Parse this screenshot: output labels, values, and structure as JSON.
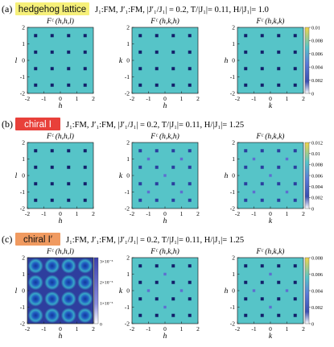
{
  "figure": {
    "rows": [
      {
        "letter": "(a)",
        "badge": "hedgehog lattice",
        "badge_color": "#f6f07a",
        "params": "J₁:FM,  J′₁:FM,  |J′₁/J₁| = 0.2,  T/|J₁|= 0.11,  H/|J₁|= 1.0",
        "colorbar_ticks": [
          "0",
          "0.002",
          "0.004",
          "0.006",
          "0.008",
          "0.01"
        ],
        "colorbar_max": 0.01
      },
      {
        "letter": "(b)",
        "badge": "chiral I",
        "badge_color": "#e8403a",
        "params": "J₁:FM,  J′₁:FM,  |J′₁/J₁| = 0.2,  T/|J₁|= 0.11,  H/|J₁|= 1.25",
        "colorbar_ticks": [
          "0",
          "0.002",
          "0.004",
          "0.006",
          "0.008",
          "0.01",
          "0.012"
        ],
        "colorbar_max": 0.012
      },
      {
        "letter": "(c)",
        "badge": "chiral I′",
        "badge_color": "#f09a60",
        "params": "J₁:FM,  J′₁:FM,  |J′₁/J₁| = 0.2,  T/|J₁|= 0.11,  H/|J₁|= 1.25",
        "colorbar_ticks": [
          "0",
          "0.002",
          "0.004",
          "0.006",
          "0.008"
        ],
        "colorbar_max": 0.008,
        "inset_colorbar_ticks": [
          "0",
          "1×10⁻⁵",
          "2×10⁻⁵",
          "3×10⁻⁵"
        ]
      }
    ],
    "colors": {
      "background": "#56c4c8",
      "peak_low": "#5e6ed0",
      "peak_mid": "#2a3f9e",
      "peak_high": "#13206a",
      "colorbar_top": "#f3d448",
      "diffuse_bg": "#2e3e9e"
    }
  },
  "chart_data": [
    {
      "type": "heatmap",
      "panel": "a-1",
      "title": "Fᶜ (h,h,l)",
      "xlabel": "h",
      "ylabel": "l",
      "xlim": [
        -2,
        2
      ],
      "ylim": [
        -2,
        2
      ],
      "xticks": [
        "-2",
        "-1",
        "0",
        "1",
        "2"
      ],
      "yticks": [
        "-2",
        "-1",
        "0",
        "1",
        "2"
      ],
      "peaks": [
        {
          "x": -1.5,
          "y": 1.5,
          "v": 0.005
        },
        {
          "x": -0.5,
          "y": 1.5,
          "v": 0.005
        },
        {
          "x": 0.5,
          "y": 1.5,
          "v": 0.005
        },
        {
          "x": 1.5,
          "y": 1.5,
          "v": 0.005
        },
        {
          "x": -1.5,
          "y": 0.5,
          "v": 0.005
        },
        {
          "x": -0.5,
          "y": 0.5,
          "v": 0.005
        },
        {
          "x": 0.5,
          "y": 0.5,
          "v": 0.005
        },
        {
          "x": 1.5,
          "y": 0.5,
          "v": 0.005
        },
        {
          "x": -1.5,
          "y": -0.5,
          "v": 0.005
        },
        {
          "x": -0.5,
          "y": -0.5,
          "v": 0.005
        },
        {
          "x": 0.5,
          "y": -0.5,
          "v": 0.005
        },
        {
          "x": 1.5,
          "y": -0.5,
          "v": 0.005
        },
        {
          "x": -1.5,
          "y": -1.5,
          "v": 0.005
        },
        {
          "x": -0.5,
          "y": -1.5,
          "v": 0.005
        },
        {
          "x": 0.5,
          "y": -1.5,
          "v": 0.005
        },
        {
          "x": 1.5,
          "y": -1.5,
          "v": 0.005
        }
      ]
    },
    {
      "type": "heatmap",
      "panel": "a-2",
      "title": "Fᶜ (h,k,h)",
      "xlabel": "h",
      "ylabel": "k",
      "xlim": [
        -2,
        2
      ],
      "ylim": [
        -2,
        2
      ],
      "xticks": [
        "-2",
        "-1",
        "0",
        "1",
        "2"
      ],
      "yticks": [
        "-2",
        "-1",
        "0",
        "1",
        "2"
      ],
      "peaks": [
        {
          "x": -1.5,
          "y": 1.5,
          "v": 0.005
        },
        {
          "x": -0.5,
          "y": 1.5,
          "v": 0.005
        },
        {
          "x": 0.5,
          "y": 1.5,
          "v": 0.005
        },
        {
          "x": 1.5,
          "y": 1.5,
          "v": 0.005
        },
        {
          "x": -1.5,
          "y": 0.5,
          "v": 0.005
        },
        {
          "x": -0.5,
          "y": 0.5,
          "v": 0.005
        },
        {
          "x": 0.5,
          "y": 0.5,
          "v": 0.005
        },
        {
          "x": 1.5,
          "y": 0.5,
          "v": 0.005
        },
        {
          "x": -1.5,
          "y": -0.5,
          "v": 0.005
        },
        {
          "x": -0.5,
          "y": -0.5,
          "v": 0.005
        },
        {
          "x": 0.5,
          "y": -0.5,
          "v": 0.005
        },
        {
          "x": 1.5,
          "y": -0.5,
          "v": 0.005
        },
        {
          "x": -1.5,
          "y": -1.5,
          "v": 0.005
        },
        {
          "x": -0.5,
          "y": -1.5,
          "v": 0.005
        },
        {
          "x": 0.5,
          "y": -1.5,
          "v": 0.005
        },
        {
          "x": 1.5,
          "y": -1.5,
          "v": 0.005
        }
      ]
    },
    {
      "type": "heatmap",
      "panel": "a-3",
      "title": "Fᶜ (h,k,k)",
      "xlabel": "k",
      "ylabel": "h",
      "xlim": [
        -2,
        2
      ],
      "ylim": [
        -2,
        2
      ],
      "xticks": [
        "-2",
        "-1",
        "0",
        "1",
        "2"
      ],
      "yticks": [
        "-2",
        "-1",
        "0",
        "1",
        "2"
      ],
      "peaks": [
        {
          "x": -1.5,
          "y": 1.5,
          "v": 0.005
        },
        {
          "x": -0.5,
          "y": 1.5,
          "v": 0.005
        },
        {
          "x": 0.5,
          "y": 1.5,
          "v": 0.005
        },
        {
          "x": 1.5,
          "y": 1.5,
          "v": 0.005
        },
        {
          "x": -1.5,
          "y": 0.5,
          "v": 0.005
        },
        {
          "x": -0.5,
          "y": 0.5,
          "v": 0.005
        },
        {
          "x": 0.5,
          "y": 0.5,
          "v": 0.005
        },
        {
          "x": 1.5,
          "y": 0.5,
          "v": 0.005
        },
        {
          "x": -1.5,
          "y": -0.5,
          "v": 0.005
        },
        {
          "x": -0.5,
          "y": -0.5,
          "v": 0.005
        },
        {
          "x": 0.5,
          "y": -0.5,
          "v": 0.005
        },
        {
          "x": 1.5,
          "y": -0.5,
          "v": 0.005
        },
        {
          "x": -1.5,
          "y": -1.5,
          "v": 0.005
        },
        {
          "x": -0.5,
          "y": -1.5,
          "v": 0.005
        },
        {
          "x": 0.5,
          "y": -1.5,
          "v": 0.005
        },
        {
          "x": 1.5,
          "y": -1.5,
          "v": 0.005
        }
      ]
    },
    {
      "type": "heatmap",
      "panel": "b-1",
      "title": "Fᶜ (h,h,l)",
      "xlabel": "h",
      "ylabel": "l",
      "xlim": [
        -2,
        2
      ],
      "ylim": [
        -2,
        2
      ],
      "xticks": [
        "-2",
        "-1",
        "0",
        "1",
        "2"
      ],
      "yticks": [
        "-2",
        "-1",
        "0",
        "1",
        "2"
      ],
      "peaks": [
        {
          "x": -1.5,
          "y": 1.5,
          "v": 0.006
        },
        {
          "x": -0.5,
          "y": 1.5,
          "v": 0.006
        },
        {
          "x": 0.5,
          "y": 1.5,
          "v": 0.006
        },
        {
          "x": 1.5,
          "y": 1.5,
          "v": 0.006
        },
        {
          "x": -1.5,
          "y": 0.5,
          "v": 0.006
        },
        {
          "x": -0.5,
          "y": 0.5,
          "v": 0.006
        },
        {
          "x": 0.5,
          "y": 0.5,
          "v": 0.006
        },
        {
          "x": 1.5,
          "y": 0.5,
          "v": 0.006
        },
        {
          "x": -1.5,
          "y": -0.5,
          "v": 0.006
        },
        {
          "x": -0.5,
          "y": -0.5,
          "v": 0.006
        },
        {
          "x": 0.5,
          "y": -0.5,
          "v": 0.006
        },
        {
          "x": 1.5,
          "y": -0.5,
          "v": 0.006
        },
        {
          "x": -1.5,
          "y": -1.5,
          "v": 0.006
        },
        {
          "x": -0.5,
          "y": -1.5,
          "v": 0.006
        },
        {
          "x": 0.5,
          "y": -1.5,
          "v": 0.006
        },
        {
          "x": 1.5,
          "y": -1.5,
          "v": 0.006
        }
      ]
    },
    {
      "type": "heatmap",
      "panel": "b-2",
      "title": "Fᶜ (h,k,h)",
      "xlabel": "h",
      "ylabel": "k",
      "xlim": [
        -2,
        2
      ],
      "ylim": [
        -2,
        2
      ],
      "xticks": [
        "-2",
        "-1",
        "0",
        "1",
        "2"
      ],
      "yticks": [
        "-2",
        "-1",
        "0",
        "1",
        "2"
      ],
      "peaks": [
        {
          "x": -1.5,
          "y": 1.5,
          "v": 0.004
        },
        {
          "x": -0.5,
          "y": 1.5,
          "v": 0.004
        },
        {
          "x": 0.5,
          "y": 1.5,
          "v": 0.004
        },
        {
          "x": 1.5,
          "y": 1.5,
          "v": 0.004
        },
        {
          "x": -1,
          "y": 1,
          "v": 0.003
        },
        {
          "x": 1,
          "y": 1,
          "v": 0.003
        },
        {
          "x": -1.5,
          "y": 0.5,
          "v": 0.004
        },
        {
          "x": -0.5,
          "y": 0.5,
          "v": 0.004
        },
        {
          "x": 0.5,
          "y": 0.5,
          "v": 0.004
        },
        {
          "x": 1.5,
          "y": 0.5,
          "v": 0.004
        },
        {
          "x": 0,
          "y": 0,
          "v": 0.003
        },
        {
          "x": -1.5,
          "y": -0.5,
          "v": 0.004
        },
        {
          "x": -0.5,
          "y": -0.5,
          "v": 0.004
        },
        {
          "x": 0.5,
          "y": -0.5,
          "v": 0.004
        },
        {
          "x": 1.5,
          "y": -0.5,
          "v": 0.004
        },
        {
          "x": -1,
          "y": -1,
          "v": 0.003
        },
        {
          "x": 1,
          "y": -1,
          "v": 0.003
        },
        {
          "x": -1.5,
          "y": -1.5,
          "v": 0.004
        },
        {
          "x": -0.5,
          "y": -1.5,
          "v": 0.004
        },
        {
          "x": 0.5,
          "y": -1.5,
          "v": 0.004
        },
        {
          "x": 1.5,
          "y": -1.5,
          "v": 0.004
        }
      ]
    },
    {
      "type": "heatmap",
      "panel": "b-3",
      "title": "Fᶜ (h,k,k)",
      "xlabel": "k",
      "ylabel": "h",
      "xlim": [
        -2,
        2
      ],
      "ylim": [
        -2,
        2
      ],
      "xticks": [
        "-2",
        "-1",
        "0",
        "1",
        "2"
      ],
      "yticks": [
        "-2",
        "-1",
        "0",
        "1",
        "2"
      ],
      "peaks": [
        {
          "x": -1.5,
          "y": 1.5,
          "v": 0.004
        },
        {
          "x": -0.5,
          "y": 1.5,
          "v": 0.004
        },
        {
          "x": 0.5,
          "y": 1.5,
          "v": 0.004
        },
        {
          "x": 1.5,
          "y": 1.5,
          "v": 0.004
        },
        {
          "x": -1,
          "y": 1,
          "v": 0.003
        },
        {
          "x": 1,
          "y": 1,
          "v": 0.003
        },
        {
          "x": -1.5,
          "y": 0.5,
          "v": 0.004
        },
        {
          "x": -0.5,
          "y": 0.5,
          "v": 0.004
        },
        {
          "x": 0.5,
          "y": 0.5,
          "v": 0.004
        },
        {
          "x": 1.5,
          "y": 0.5,
          "v": 0.004
        },
        {
          "x": 0,
          "y": 0,
          "v": 0.003
        },
        {
          "x": -1.5,
          "y": -0.5,
          "v": 0.004
        },
        {
          "x": -0.5,
          "y": -0.5,
          "v": 0.004
        },
        {
          "x": 0.5,
          "y": -0.5,
          "v": 0.004
        },
        {
          "x": 1.5,
          "y": -0.5,
          "v": 0.004
        },
        {
          "x": -1,
          "y": -1,
          "v": 0.003
        },
        {
          "x": 1,
          "y": -1,
          "v": 0.003
        },
        {
          "x": -1.5,
          "y": -1.5,
          "v": 0.004
        },
        {
          "x": -0.5,
          "y": -1.5,
          "v": 0.004
        },
        {
          "x": 0.5,
          "y": -1.5,
          "v": 0.004
        },
        {
          "x": 1.5,
          "y": -1.5,
          "v": 0.004
        }
      ]
    },
    {
      "type": "heatmap",
      "panel": "c-1",
      "title": "Fᶜ (h,h,l)",
      "xlabel": "h",
      "ylabel": "l",
      "xlim": [
        -2,
        2
      ],
      "ylim": [
        -2,
        2
      ],
      "xticks": [
        "-2",
        "-1",
        "0",
        "1",
        "2"
      ],
      "yticks": [
        "-2",
        "-1",
        "0",
        "1",
        "2"
      ],
      "diffuse": true,
      "colorbar_max": 3e-05,
      "peaks": [
        {
          "x": -1.5,
          "y": 1.5,
          "v": 2.5e-05
        },
        {
          "x": -0.5,
          "y": 1.5,
          "v": 2.5e-05
        },
        {
          "x": 0.5,
          "y": 1.5,
          "v": 2.5e-05
        },
        {
          "x": 1.5,
          "y": 1.5,
          "v": 2.5e-05
        },
        {
          "x": -1.5,
          "y": 0.5,
          "v": 2.5e-05
        },
        {
          "x": -0.5,
          "y": 0.5,
          "v": 2.5e-05
        },
        {
          "x": 0.5,
          "y": 0.5,
          "v": 2.5e-05
        },
        {
          "x": 1.5,
          "y": 0.5,
          "v": 2.5e-05
        },
        {
          "x": -1.5,
          "y": -0.5,
          "v": 2.5e-05
        },
        {
          "x": -0.5,
          "y": -0.5,
          "v": 2.5e-05
        },
        {
          "x": 0.5,
          "y": -0.5,
          "v": 2.5e-05
        },
        {
          "x": 1.5,
          "y": -0.5,
          "v": 2.5e-05
        },
        {
          "x": -1.5,
          "y": -1.5,
          "v": 2.5e-05
        },
        {
          "x": -0.5,
          "y": -1.5,
          "v": 2.5e-05
        },
        {
          "x": 0.5,
          "y": -1.5,
          "v": 2.5e-05
        },
        {
          "x": 1.5,
          "y": -1.5,
          "v": 2.5e-05
        }
      ]
    },
    {
      "type": "heatmap",
      "panel": "c-2",
      "title": "Fᶜ (h,k,h)",
      "xlabel": "h",
      "ylabel": "k",
      "xlim": [
        -2,
        2
      ],
      "ylim": [
        -2,
        2
      ],
      "xticks": [
        "-2",
        "-1",
        "0",
        "1",
        "2"
      ],
      "yticks": [
        "-2",
        "-1",
        "0",
        "1",
        "2"
      ],
      "peaks": [
        {
          "x": -1.5,
          "y": 1.5,
          "v": 0.004
        },
        {
          "x": -0.5,
          "y": 1.5,
          "v": 0.004
        },
        {
          "x": 0.5,
          "y": 1.5,
          "v": 0.004
        },
        {
          "x": 1.5,
          "y": 1.5,
          "v": 0.004
        },
        {
          "x": 0,
          "y": 1,
          "v": 0.002
        },
        {
          "x": -1.5,
          "y": 0.5,
          "v": 0.004
        },
        {
          "x": -0.5,
          "y": 0.5,
          "v": 0.004
        },
        {
          "x": 0.5,
          "y": 0.5,
          "v": 0.004
        },
        {
          "x": 1.5,
          "y": 0.5,
          "v": 0.004
        },
        {
          "x": -1,
          "y": 0,
          "v": 0.002
        },
        {
          "x": 1,
          "y": 0,
          "v": 0.002
        },
        {
          "x": -1.5,
          "y": -0.5,
          "v": 0.004
        },
        {
          "x": -0.5,
          "y": -0.5,
          "v": 0.004
        },
        {
          "x": 0.5,
          "y": -0.5,
          "v": 0.004
        },
        {
          "x": 1.5,
          "y": -0.5,
          "v": 0.004
        },
        {
          "x": 0,
          "y": -1,
          "v": 0.002
        },
        {
          "x": -1.5,
          "y": -1.5,
          "v": 0.004
        },
        {
          "x": -0.5,
          "y": -1.5,
          "v": 0.004
        },
        {
          "x": 0.5,
          "y": -1.5,
          "v": 0.004
        },
        {
          "x": 1.5,
          "y": -1.5,
          "v": 0.004
        }
      ]
    },
    {
      "type": "heatmap",
      "panel": "c-3",
      "title": "Fᶜ (h,k,k)",
      "xlabel": "k",
      "ylabel": "h",
      "xlim": [
        -2,
        2
      ],
      "ylim": [
        -2,
        2
      ],
      "xticks": [
        "-2",
        "-1",
        "0",
        "1",
        "2"
      ],
      "yticks": [
        "-2",
        "-1",
        "0",
        "1",
        "2"
      ],
      "peaks": [
        {
          "x": -1.5,
          "y": 1.5,
          "v": 0.004
        },
        {
          "x": -0.5,
          "y": 1.5,
          "v": 0.004
        },
        {
          "x": 0.5,
          "y": 1.5,
          "v": 0.004
        },
        {
          "x": 1.5,
          "y": 1.5,
          "v": 0.004
        },
        {
          "x": 0,
          "y": 1,
          "v": 0.002
        },
        {
          "x": -1.5,
          "y": 0.5,
          "v": 0.004
        },
        {
          "x": -0.5,
          "y": 0.5,
          "v": 0.004
        },
        {
          "x": 0.5,
          "y": 0.5,
          "v": 0.004
        },
        {
          "x": 1.5,
          "y": 0.5,
          "v": 0.004
        },
        {
          "x": -1,
          "y": 0,
          "v": 0.002
        },
        {
          "x": 1,
          "y": 0,
          "v": 0.002
        },
        {
          "x": -1.5,
          "y": -0.5,
          "v": 0.004
        },
        {
          "x": -0.5,
          "y": -0.5,
          "v": 0.004
        },
        {
          "x": 0.5,
          "y": -0.5,
          "v": 0.004
        },
        {
          "x": 1.5,
          "y": -0.5,
          "v": 0.004
        },
        {
          "x": 0,
          "y": -1,
          "v": 0.002
        },
        {
          "x": -1.5,
          "y": -1.5,
          "v": 0.004
        },
        {
          "x": -0.5,
          "y": -1.5,
          "v": 0.004
        },
        {
          "x": 0.5,
          "y": -1.5,
          "v": 0.004
        },
        {
          "x": 1.5,
          "y": -1.5,
          "v": 0.004
        }
      ]
    }
  ]
}
